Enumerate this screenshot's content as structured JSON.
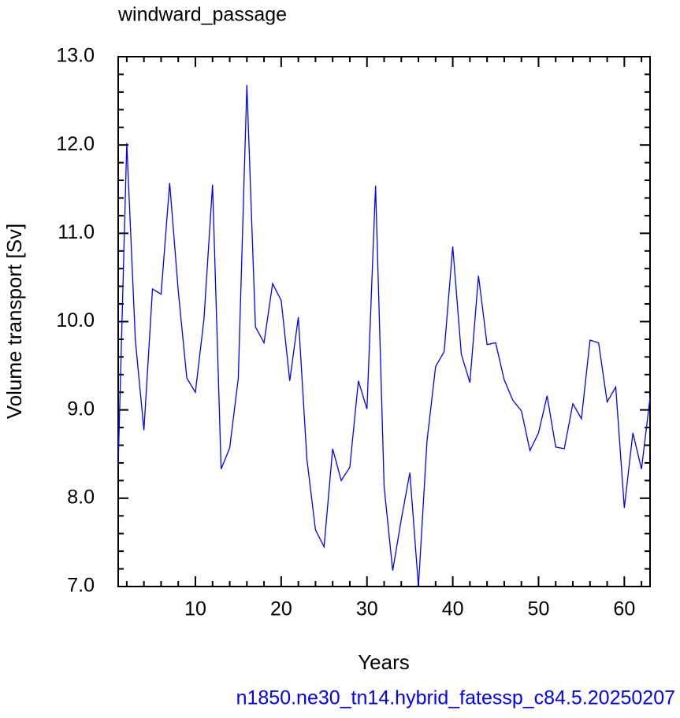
{
  "chart_data": {
    "type": "line",
    "title": "windward_passage",
    "footer": "n1850.ne30_tn14.hybrid_fatessp_c84.5.20250207",
    "x_label": "Years",
    "y_label": "Volume transport [Sv]",
    "x": [
      1,
      2,
      3,
      4,
      5,
      6,
      7,
      8,
      9,
      10,
      11,
      12,
      13,
      14,
      15,
      16,
      17,
      18,
      19,
      20,
      21,
      22,
      23,
      24,
      25,
      26,
      27,
      28,
      29,
      30,
      31,
      32,
      33,
      34,
      35,
      36,
      37,
      38,
      39,
      40,
      41,
      42,
      43,
      44,
      45,
      46,
      47,
      48,
      49,
      50,
      51,
      52,
      53,
      54,
      55,
      56,
      57,
      58,
      59,
      60,
      61,
      62,
      63
    ],
    "series": [
      {
        "color": "#0000ff",
        "values": [
          8.38,
          12.02,
          9.79,
          8.77,
          10.37,
          10.31,
          11.57,
          10.35,
          9.36,
          9.2,
          10.03,
          11.55,
          8.33,
          8.57,
          9.36,
          12.68,
          9.94,
          9.76,
          10.43,
          10.24,
          9.33,
          10.05,
          8.44,
          7.64,
          7.45,
          8.56,
          8.2,
          8.35,
          9.33,
          9.01,
          11.54,
          8.13,
          7.18,
          7.76,
          8.29,
          7.0,
          8.65,
          9.49,
          9.66,
          10.85,
          9.63,
          9.31,
          10.52,
          9.74,
          9.76,
          9.34,
          9.11,
          8.99,
          8.54,
          8.74,
          9.16,
          8.58,
          8.56,
          9.07,
          8.9,
          9.79,
          9.76,
          9.09,
          9.26,
          7.89,
          8.74,
          8.33,
          9.14
        ]
      }
    ],
    "xlim": [
      1,
      63
    ],
    "ylim": [
      7,
      13
    ],
    "xticks": [
      10,
      20,
      30,
      40,
      50,
      60
    ],
    "yticks": [
      {
        "value": 7,
        "label": "7.0"
      },
      {
        "value": 8,
        "label": "8.0"
      },
      {
        "value": 9,
        "label": "9.0"
      },
      {
        "value": 10,
        "label": "10.0"
      },
      {
        "value": 11,
        "label": "11.0"
      },
      {
        "value": 12,
        "label": "12.0"
      },
      {
        "value": 13,
        "label": "13.0"
      }
    ]
  }
}
